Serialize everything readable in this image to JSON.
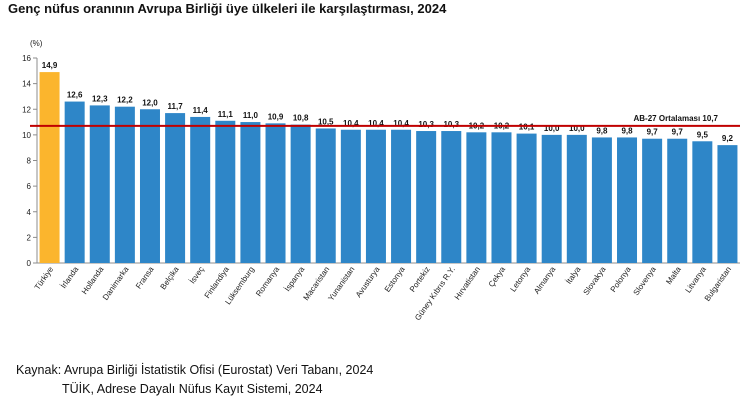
{
  "chart_data": {
    "type": "bar",
    "title": "Genç nüfus oranının Avrupa Birliği üye ülkeleri ile karşılaştırması, 2024",
    "ylabel": "(%)",
    "ylim": [
      0,
      16
    ],
    "yticks": [
      0,
      2,
      4,
      6,
      8,
      10,
      12,
      14,
      16
    ],
    "grid": false,
    "categories": [
      "Türkiye",
      "İrlanda",
      "Hollanda",
      "Danimarka",
      "Fransa",
      "Belçika",
      "İsveç",
      "Finlandiya",
      "Lüksemburg",
      "Romanya",
      "İspanya",
      "Macaristan",
      "Yunanistan",
      "Avusturya",
      "Estonya",
      "Portekiz",
      "Güney Kıbrıs R.Y.",
      "Hırvatistan",
      "Çekya",
      "Letonya",
      "Almanya",
      "İtalya",
      "Slovakya",
      "Polonya",
      "Slovenya",
      "Malta",
      "Litvanya",
      "Bulgaristan"
    ],
    "values": [
      14.9,
      12.6,
      12.3,
      12.2,
      12.0,
      11.7,
      11.4,
      11.1,
      11.0,
      10.9,
      10.8,
      10.5,
      10.4,
      10.4,
      10.4,
      10.3,
      10.3,
      10.2,
      10.2,
      10.1,
      10.0,
      10.0,
      9.8,
      9.8,
      9.7,
      9.7,
      9.5,
      9.2
    ],
    "value_labels": [
      "14,9",
      "12,6",
      "12,3",
      "12,2",
      "12,0",
      "11,7",
      "11,4",
      "11,1",
      "11,0",
      "10,9",
      "10,8",
      "10,5",
      "10,4",
      "10,4",
      "10,4",
      "10,3",
      "10,3",
      "10,2",
      "10,2",
      "10,1",
      "10,0",
      "10,0",
      "9,8",
      "9,8",
      "9,7",
      "9,7",
      "9,5",
      "9,2"
    ],
    "reference_line": {
      "label": "AB-27 Ortalaması 10,7",
      "value": 10.7
    },
    "colors": {
      "highlight": "#fbb52d",
      "bar": "#2e86c8",
      "reference_line": "#c00000"
    }
  },
  "source": {
    "line1": "Kaynak: Avrupa Birliği İstatistik Ofisi (Eurostat) Veri Tabanı, 2024",
    "line2": "TÜİK, Adrese Dayalı Nüfus Kayıt Sistemi, 2024"
  }
}
